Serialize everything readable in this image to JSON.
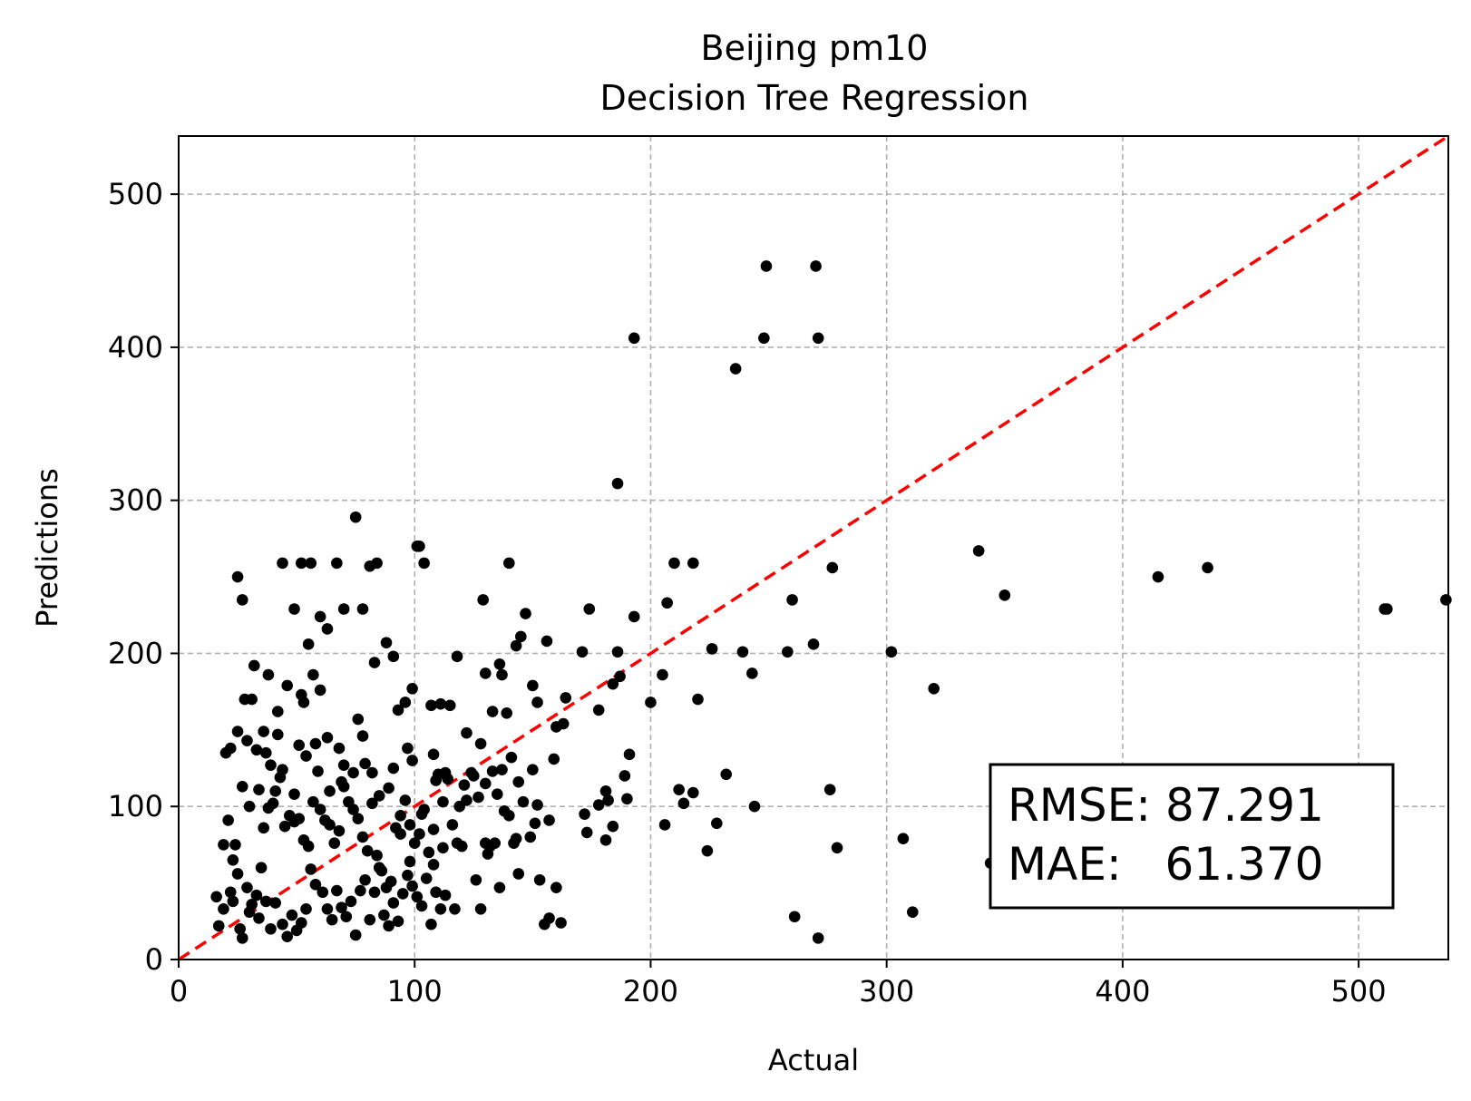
{
  "chart_data": {
    "type": "scatter",
    "title": "Beijing pm10\nDecision Tree Regression",
    "title_lines": [
      "Beijing pm10",
      "Decision Tree Regression"
    ],
    "xlabel": "Actual",
    "ylabel": "Predictions",
    "xlim": [
      0,
      538
    ],
    "ylim": [
      0,
      538
    ],
    "xticks": [
      0,
      100,
      200,
      300,
      400,
      500
    ],
    "yticks": [
      0,
      100,
      200,
      300,
      400,
      500
    ],
    "grid": true,
    "reference_line": {
      "x": [
        0,
        538
      ],
      "y": [
        0,
        538
      ],
      "style": "dashed",
      "color": "#ff0000"
    },
    "annotation": {
      "lines": [
        "RMSE: 87.291",
        "MAE:   61.370"
      ],
      "position": "bottom-right"
    },
    "colors": {
      "points": "#000000",
      "reference": "#ff0000",
      "grid": "#b0b0b0"
    },
    "series": [
      {
        "points": [
          [
            249,
            453
          ],
          [
            270,
            453
          ],
          [
            193,
            406
          ],
          [
            248,
            406
          ],
          [
            271,
            406
          ],
          [
            236,
            386
          ],
          [
            186,
            311
          ],
          [
            75,
            289
          ],
          [
            102,
            270
          ],
          [
            339,
            267
          ],
          [
            25,
            250
          ],
          [
            415,
            250
          ],
          [
            436,
            256
          ],
          [
            277,
            256
          ],
          [
            210,
            259
          ],
          [
            218,
            259
          ],
          [
            140,
            259
          ],
          [
            104,
            259
          ],
          [
            84,
            259
          ],
          [
            44,
            259
          ],
          [
            52,
            259
          ],
          [
            56,
            259
          ],
          [
            67,
            259
          ],
          [
            81,
            257
          ],
          [
            27,
            235
          ],
          [
            129,
            235
          ],
          [
            260,
            235
          ],
          [
            350,
            238
          ],
          [
            537,
            235
          ],
          [
            511,
            229
          ],
          [
            512,
            229
          ],
          [
            174,
            229
          ],
          [
            193,
            224
          ],
          [
            49,
            229
          ],
          [
            70,
            229
          ],
          [
            78,
            229
          ],
          [
            60,
            224
          ],
          [
            63,
            216
          ],
          [
            55,
            206
          ],
          [
            101,
            270
          ],
          [
            207,
            233
          ],
          [
            88,
            207
          ],
          [
            83,
            194
          ],
          [
            91,
            198
          ],
          [
            32,
            192
          ],
          [
            38,
            186
          ],
          [
            46,
            179
          ],
          [
            52,
            173
          ],
          [
            57,
            186
          ],
          [
            53,
            168
          ],
          [
            60,
            176
          ],
          [
            147,
            226
          ],
          [
            145,
            211
          ],
          [
            156,
            208
          ],
          [
            118,
            198
          ],
          [
            143,
            205
          ],
          [
            136,
            193
          ],
          [
            130,
            187
          ],
          [
            137,
            186
          ],
          [
            171,
            201
          ],
          [
            186,
            201
          ],
          [
            226,
            203
          ],
          [
            239,
            201
          ],
          [
            258,
            201
          ],
          [
            269,
            206
          ],
          [
            302,
            201
          ],
          [
            205,
            186
          ],
          [
            243,
            187
          ],
          [
            220,
            170
          ],
          [
            200,
            168
          ],
          [
            184,
            180
          ],
          [
            187,
            185
          ],
          [
            150,
            179
          ],
          [
            152,
            168
          ],
          [
            133,
            162
          ],
          [
            139,
            161
          ],
          [
            164,
            171
          ],
          [
            163,
            154
          ],
          [
            160,
            152
          ],
          [
            178,
            163
          ],
          [
            191,
            134
          ],
          [
            189,
            120
          ],
          [
            212,
            111
          ],
          [
            218,
            109
          ],
          [
            232,
            121
          ],
          [
            276,
            111
          ],
          [
            320,
            177
          ],
          [
            244,
            100
          ],
          [
            214,
            102
          ],
          [
            206,
            88
          ],
          [
            228,
            89
          ],
          [
            224,
            71
          ],
          [
            261,
            28
          ],
          [
            271,
            14
          ],
          [
            279,
            73
          ],
          [
            307,
            79
          ],
          [
            311,
            31
          ],
          [
            344,
            63
          ],
          [
            28,
            170
          ],
          [
            31,
            170
          ],
          [
            42,
            162
          ],
          [
            25,
            149
          ],
          [
            36,
            149
          ],
          [
            42,
            147
          ],
          [
            29,
            143
          ],
          [
            33,
            137
          ],
          [
            37,
            135
          ],
          [
            20,
            135
          ],
          [
            22,
            138
          ],
          [
            51,
            140
          ],
          [
            58,
            141
          ],
          [
            63,
            145
          ],
          [
            68,
            138
          ],
          [
            70,
            127
          ],
          [
            76,
            157
          ],
          [
            78,
            146
          ],
          [
            82,
            122
          ],
          [
            91,
            125
          ],
          [
            97,
            138
          ],
          [
            99,
            130
          ],
          [
            93,
            163
          ],
          [
            96,
            168
          ],
          [
            99,
            177
          ],
          [
            107,
            166
          ],
          [
            111,
            167
          ],
          [
            108,
            134
          ],
          [
            113,
            122
          ],
          [
            109,
            117
          ],
          [
            115,
            166
          ],
          [
            122,
            148
          ],
          [
            128,
            141
          ],
          [
            125,
            120
          ],
          [
            121,
            114
          ],
          [
            133,
            123
          ],
          [
            130,
            115
          ],
          [
            141,
            132
          ],
          [
            137,
            124
          ],
          [
            144,
            116
          ],
          [
            152,
            101
          ],
          [
            150,
            124
          ],
          [
            146,
            103
          ],
          [
            157,
            91
          ],
          [
            159,
            131
          ],
          [
            181,
            110
          ],
          [
            178,
            101
          ],
          [
            172,
            95
          ],
          [
            182,
            104
          ],
          [
            184,
            87
          ],
          [
            173,
            83
          ],
          [
            181,
            78
          ],
          [
            190,
            105
          ],
          [
            23,
            65
          ],
          [
            16,
            41
          ],
          [
            19,
            75
          ],
          [
            17,
            22
          ],
          [
            21,
            91
          ],
          [
            24,
            75
          ],
          [
            25,
            56
          ],
          [
            23,
            38
          ],
          [
            27,
            14
          ],
          [
            29,
            47
          ],
          [
            31,
            36
          ],
          [
            33,
            42
          ],
          [
            35,
            60
          ],
          [
            36,
            86
          ],
          [
            38,
            99
          ],
          [
            40,
            102
          ],
          [
            41,
            110
          ],
          [
            43,
            119
          ],
          [
            45,
            87
          ],
          [
            47,
            94
          ],
          [
            49,
            108
          ],
          [
            51,
            92
          ],
          [
            53,
            78
          ],
          [
            55,
            74
          ],
          [
            57,
            103
          ],
          [
            60,
            98
          ],
          [
            62,
            91
          ],
          [
            64,
            88
          ],
          [
            66,
            76
          ],
          [
            68,
            84
          ],
          [
            70,
            113
          ],
          [
            72,
            103
          ],
          [
            74,
            98
          ],
          [
            76,
            92
          ],
          [
            78,
            80
          ],
          [
            80,
            71
          ],
          [
            82,
            102
          ],
          [
            84,
            68
          ],
          [
            86,
            58
          ],
          [
            88,
            47
          ],
          [
            90,
            51
          ],
          [
            92,
            86
          ],
          [
            94,
            94
          ],
          [
            96,
            104
          ],
          [
            98,
            88
          ],
          [
            100,
            76
          ],
          [
            102,
            82
          ],
          [
            104,
            98
          ],
          [
            106,
            70
          ],
          [
            108,
            62
          ],
          [
            110,
            121
          ],
          [
            112,
            103
          ],
          [
            114,
            118
          ],
          [
            116,
            88
          ],
          [
            118,
            76
          ],
          [
            120,
            74
          ],
          [
            122,
            104
          ],
          [
            124,
            122
          ],
          [
            126,
            52
          ],
          [
            128,
            33
          ],
          [
            130,
            76
          ],
          [
            132,
            74
          ],
          [
            134,
            76
          ],
          [
            136,
            47
          ],
          [
            138,
            97
          ],
          [
            140,
            94
          ],
          [
            142,
            76
          ],
          [
            144,
            56
          ],
          [
            153,
            52
          ],
          [
            155,
            23
          ],
          [
            157,
            27
          ],
          [
            160,
            47
          ],
          [
            162,
            24
          ],
          [
            19,
            33
          ],
          [
            22,
            44
          ],
          [
            26,
            20
          ],
          [
            30,
            31
          ],
          [
            34,
            27
          ],
          [
            37,
            38
          ],
          [
            39,
            20
          ],
          [
            41,
            37
          ],
          [
            44,
            23
          ],
          [
            46,
            15
          ],
          [
            48,
            29
          ],
          [
            50,
            19
          ],
          [
            52,
            24
          ],
          [
            54,
            33
          ],
          [
            56,
            59
          ],
          [
            58,
            49
          ],
          [
            61,
            44
          ],
          [
            63,
            33
          ],
          [
            65,
            26
          ],
          [
            67,
            45
          ],
          [
            69,
            34
          ],
          [
            71,
            28
          ],
          [
            73,
            38
          ],
          [
            75,
            16
          ],
          [
            77,
            45
          ],
          [
            79,
            52
          ],
          [
            81,
            26
          ],
          [
            83,
            44
          ],
          [
            85,
            60
          ],
          [
            87,
            29
          ],
          [
            89,
            22
          ],
          [
            91,
            37
          ],
          [
            93,
            25
          ],
          [
            95,
            43
          ],
          [
            97,
            55
          ],
          [
            99,
            48
          ],
          [
            101,
            41
          ],
          [
            103,
            35
          ],
          [
            105,
            53
          ],
          [
            107,
            23
          ],
          [
            109,
            44
          ],
          [
            111,
            33
          ],
          [
            113,
            42
          ],
          [
            117,
            33
          ],
          [
            27,
            113
          ],
          [
            30,
            100
          ],
          [
            34,
            111
          ],
          [
            39,
            127
          ],
          [
            44,
            124
          ],
          [
            49,
            90
          ],
          [
            54,
            133
          ],
          [
            59,
            123
          ],
          [
            64,
            110
          ],
          [
            69,
            116
          ],
          [
            74,
            122
          ],
          [
            79,
            128
          ],
          [
            85,
            107
          ],
          [
            89,
            112
          ],
          [
            94,
            82
          ],
          [
            98,
            64
          ],
          [
            103,
            95
          ],
          [
            108,
            85
          ],
          [
            112,
            73
          ],
          [
            119,
            100
          ],
          [
            127,
            106
          ],
          [
            131,
            69
          ],
          [
            135,
            108
          ],
          [
            143,
            79
          ],
          [
            149,
            80
          ],
          [
            151,
            89
          ]
        ]
      }
    ]
  }
}
